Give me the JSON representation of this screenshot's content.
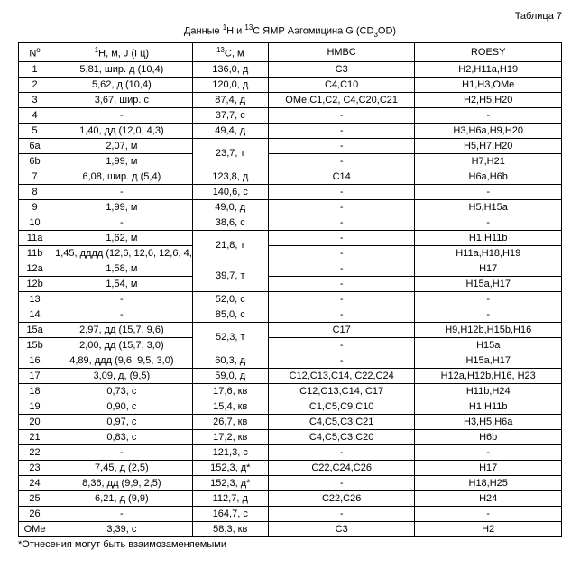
{
  "caption": "Таблица 7",
  "title_parts": [
    "Данные ",
    "1",
    "H и ",
    "13",
    "C ЯМР Аэгомицина G (CD",
    "3",
    "OD)"
  ],
  "columns": [
    {
      "label_parts": [
        "N",
        "o"
      ],
      "sup_idx": [
        1
      ]
    },
    {
      "label_parts": [
        "1",
        "H, м, J (Гц)"
      ],
      "sup_idx": [
        0
      ]
    },
    {
      "label_parts": [
        "13",
        "C, м"
      ],
      "sup_idx": [
        0
      ]
    },
    {
      "label_parts": [
        "HMBC"
      ],
      "sup_idx": []
    },
    {
      "label_parts": [
        "ROESY"
      ],
      "sup_idx": []
    }
  ],
  "rows": [
    {
      "n": "1",
      "h": "5,81, шир. д (10,4)",
      "c": "136,0, д",
      "hmbc": "C3",
      "roesy": "H2,H11a,H19"
    },
    {
      "n": "2",
      "h": "5,62, д (10,4)",
      "c": "120,0, д",
      "hmbc": "C4,C10",
      "roesy": "H1,H3,OMe"
    },
    {
      "n": "3",
      "h": "3,67, шир. с",
      "c": "87,4, д",
      "hmbc": "OMe,C1,C2, C4,C20,C21",
      "roesy": "H2,H5,H20"
    },
    {
      "n": "4",
      "h": "-",
      "c": "37,7, с",
      "hmbc": "-",
      "roesy": "-"
    },
    {
      "n": "5",
      "h": "1,40, дд (12,0, 4,3)",
      "c": "49,4, д",
      "hmbc": "-",
      "roesy": "H3,H6a,H9,H20"
    },
    {
      "n": "6a",
      "h": "2,07, м",
      "c": "23,7, т",
      "hmbc": "-",
      "roesy": "H5,H7,H20",
      "rowspan_c": 2
    },
    {
      "n": "6b",
      "h": "1,99, м",
      "c": null,
      "hmbc": "-",
      "roesy": "H7,H21"
    },
    {
      "n": "7",
      "h": "6,08, шир. д (5,4)",
      "c": "123,8, д",
      "hmbc": "C14",
      "roesy": "H6a,H6b"
    },
    {
      "n": "8",
      "h": "-",
      "c": "140,6, с",
      "hmbc": "-",
      "roesy": "-"
    },
    {
      "n": "9",
      "h": "1,99, м",
      "c": "49,0, д",
      "hmbc": "-",
      "roesy": "H5,H15a"
    },
    {
      "n": "10",
      "h": "-",
      "c": "38,6, с",
      "hmbc": "-",
      "roesy": "-"
    },
    {
      "n": "11a",
      "h": "1,62, м",
      "c": "21,8, т",
      "hmbc": "-",
      "roesy": "H1,H11b",
      "rowspan_c": 2
    },
    {
      "n": "11b",
      "h": "1,45, дддд (12,6, 12,6, 12,6, 4,1)",
      "c": null,
      "hmbc": "-",
      "roesy": "H11a,H18,H19"
    },
    {
      "n": "12a",
      "h": "1,58, м",
      "c": "39,7, т",
      "hmbc": "-",
      "roesy": "H17",
      "rowspan_c": 2
    },
    {
      "n": "12b",
      "h": "1,54, м",
      "c": null,
      "hmbc": "-",
      "roesy": "H15a,H17"
    },
    {
      "n": "13",
      "h": "-",
      "c": "52,0, с",
      "hmbc": "-",
      "roesy": "-"
    },
    {
      "n": "14",
      "h": "-",
      "c": "85,0, с",
      "hmbc": "-",
      "roesy": "-"
    },
    {
      "n": "15a",
      "h": "2,97, дд (15,7, 9,6)",
      "c": "52,3, т",
      "hmbc": "C17",
      "roesy": "H9,H12b,H15b,H16",
      "rowspan_c": 2
    },
    {
      "n": "15b",
      "h": "2,00, дд (15,7, 3,0)",
      "c": null,
      "hmbc": "-",
      "roesy": "H15a"
    },
    {
      "n": "16",
      "h": "4,89, ддд (9,6, 9,5, 3,0)",
      "c": "60,3, д",
      "hmbc": "-",
      "roesy": "H15a,H17"
    },
    {
      "n": "17",
      "h": "3,09, д, (9,5)",
      "c": "59,0, д",
      "hmbc": "C12,C13,C14, C22,C24",
      "roesy": "H12a,H12b,H16, H23"
    },
    {
      "n": "18",
      "h": "0,73, с",
      "c": "17,6, кв",
      "hmbc": "C12,C13,C14, C17",
      "roesy": "H11b,H24"
    },
    {
      "n": "19",
      "h": "0,90, с",
      "c": "15,4, кв",
      "hmbc": "C1,C5,C9,C10",
      "roesy": "H1,H11b"
    },
    {
      "n": "20",
      "h": "0,97, с",
      "c": "26,7, кв",
      "hmbc": "C4,C5,C3,C21",
      "roesy": "H3,H5,H6a"
    },
    {
      "n": "21",
      "h": "0,83, с",
      "c": "17,2, кв",
      "hmbc": "C4,C5,C3,C20",
      "roesy": "H6b"
    },
    {
      "n": "22",
      "h": "-",
      "c": "121,3, с",
      "hmbc": "-",
      "roesy": "-"
    },
    {
      "n": "23",
      "h": "7,45, д (2,5)",
      "c": "152,3, д*",
      "hmbc": "C22,C24,C26",
      "roesy": "H17"
    },
    {
      "n": "24",
      "h": "8,36, дд (9,9, 2,5)",
      "c": "152,3, д*",
      "hmbc": "-",
      "roesy": "H18,H25"
    },
    {
      "n": "25",
      "h": "6,21, д (9,9)",
      "c": "112,7, д",
      "hmbc": "C22,C26",
      "roesy": "H24"
    },
    {
      "n": "26",
      "h": "-",
      "c": "164,7, с",
      "hmbc": "-",
      "roesy": "-"
    },
    {
      "n": "OMe",
      "h": "3,39, с",
      "c": "58,3, кв",
      "hmbc": "C3",
      "roesy": "H2"
    }
  ],
  "footnote": "*Отнесения могут быть взаимозаменяемыми"
}
